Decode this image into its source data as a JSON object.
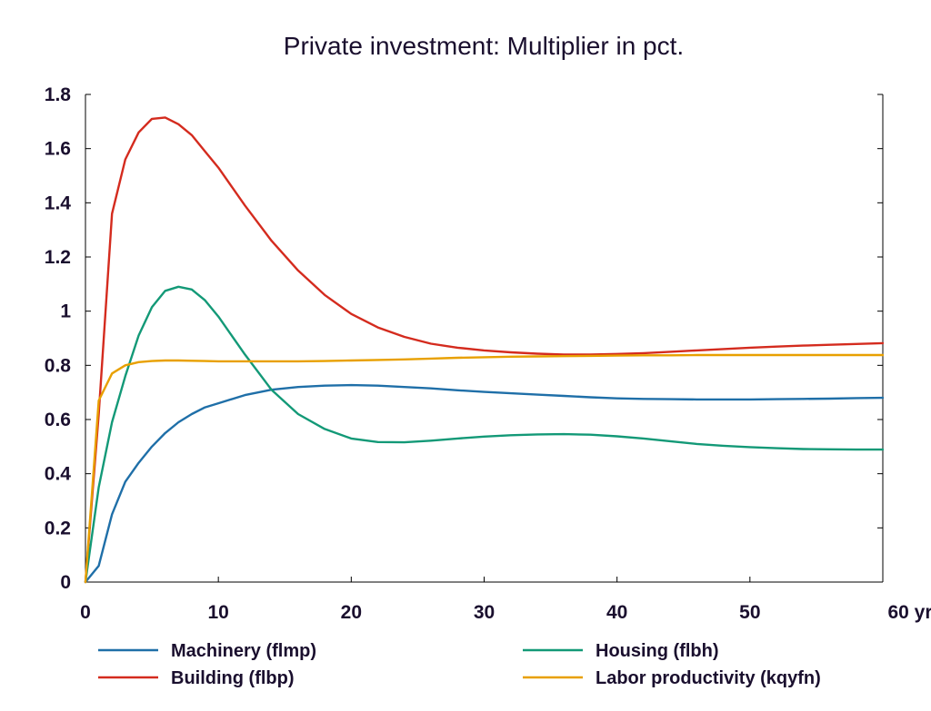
{
  "chart_data": {
    "type": "line",
    "title": "Private investment: Multiplier in pct.",
    "xlabel": "",
    "ylabel": "",
    "x_unit_label": "yr",
    "xlim": [
      0,
      60
    ],
    "ylim": [
      0,
      1.8
    ],
    "x_ticks": [
      0,
      10,
      20,
      30,
      40,
      50,
      60
    ],
    "x_tick_labels": [
      "0",
      "10",
      "20",
      "30",
      "40",
      "50",
      "60 yr"
    ],
    "y_ticks": [
      0,
      0.2,
      0.4,
      0.6,
      0.8,
      1,
      1.2,
      1.4,
      1.6,
      1.8
    ],
    "y_tick_labels": [
      "0",
      "0.2",
      "0.4",
      "0.6",
      "0.8",
      "1",
      "1.2",
      "1.4",
      "1.6",
      "1.8"
    ],
    "grid": false,
    "legend_position": "bottom",
    "series": [
      {
        "name": "Machinery (flmp)",
        "color": "#1f6fa8",
        "x": [
          0,
          1,
          2,
          3,
          4,
          5,
          6,
          7,
          8,
          9,
          10,
          12,
          14,
          16,
          18,
          20,
          22,
          24,
          26,
          28,
          30,
          32,
          34,
          36,
          38,
          40,
          42,
          44,
          46,
          48,
          50,
          52,
          54,
          56,
          58,
          60
        ],
        "y": [
          0,
          0.06,
          0.25,
          0.37,
          0.44,
          0.5,
          0.55,
          0.59,
          0.62,
          0.645,
          0.66,
          0.69,
          0.71,
          0.72,
          0.725,
          0.727,
          0.725,
          0.72,
          0.715,
          0.708,
          0.702,
          0.697,
          0.692,
          0.687,
          0.682,
          0.678,
          0.676,
          0.675,
          0.674,
          0.674,
          0.674,
          0.675,
          0.676,
          0.677,
          0.679,
          0.68
        ]
      },
      {
        "name": "Building (flbp)",
        "color": "#d42b1e",
        "x": [
          0,
          1,
          2,
          3,
          4,
          5,
          6,
          7,
          8,
          9,
          10,
          12,
          14,
          16,
          18,
          20,
          22,
          24,
          26,
          28,
          30,
          32,
          34,
          36,
          38,
          40,
          42,
          44,
          46,
          48,
          50,
          52,
          54,
          56,
          58,
          60
        ],
        "y": [
          0,
          0.62,
          1.36,
          1.56,
          1.66,
          1.71,
          1.715,
          1.69,
          1.65,
          1.59,
          1.53,
          1.39,
          1.26,
          1.15,
          1.06,
          0.99,
          0.94,
          0.905,
          0.88,
          0.865,
          0.855,
          0.848,
          0.843,
          0.84,
          0.84,
          0.842,
          0.845,
          0.85,
          0.855,
          0.86,
          0.865,
          0.869,
          0.873,
          0.876,
          0.879,
          0.882
        ]
      },
      {
        "name": "Housing (flbh)",
        "color": "#139977",
        "x": [
          0,
          1,
          2,
          3,
          4,
          5,
          6,
          7,
          8,
          9,
          10,
          12,
          14,
          16,
          18,
          20,
          22,
          24,
          26,
          28,
          30,
          32,
          34,
          36,
          38,
          40,
          42,
          44,
          46,
          48,
          50,
          52,
          54,
          56,
          58,
          60
        ],
        "y": [
          0,
          0.35,
          0.59,
          0.76,
          0.91,
          1.015,
          1.075,
          1.09,
          1.08,
          1.04,
          0.98,
          0.84,
          0.71,
          0.62,
          0.565,
          0.53,
          0.517,
          0.516,
          0.522,
          0.53,
          0.537,
          0.542,
          0.545,
          0.546,
          0.544,
          0.538,
          0.53,
          0.52,
          0.51,
          0.503,
          0.498,
          0.494,
          0.491,
          0.49,
          0.489,
          0.489
        ]
      },
      {
        "name": "Labor productivity (kqyfn)",
        "color": "#e8a000",
        "x": [
          0,
          1,
          2,
          3,
          4,
          5,
          6,
          7,
          8,
          9,
          10,
          12,
          14,
          16,
          18,
          20,
          22,
          24,
          26,
          28,
          30,
          32,
          34,
          36,
          38,
          40,
          42,
          44,
          46,
          48,
          50,
          52,
          54,
          56,
          58,
          60
        ],
        "y": [
          0,
          0.67,
          0.77,
          0.8,
          0.812,
          0.816,
          0.818,
          0.818,
          0.817,
          0.816,
          0.815,
          0.815,
          0.815,
          0.815,
          0.816,
          0.818,
          0.82,
          0.822,
          0.825,
          0.828,
          0.83,
          0.832,
          0.833,
          0.834,
          0.835,
          0.836,
          0.837,
          0.837,
          0.838,
          0.838,
          0.838,
          0.838,
          0.838,
          0.838,
          0.838,
          0.838
        ]
      }
    ]
  }
}
